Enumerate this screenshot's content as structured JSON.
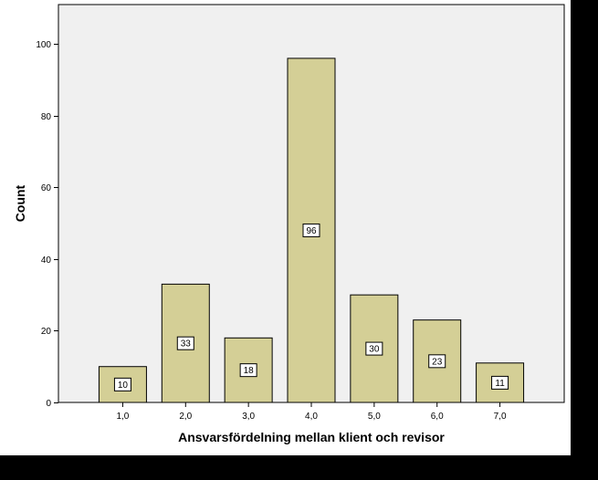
{
  "chart_data": {
    "type": "bar",
    "title": "",
    "xlabel": "Ansvarsfördelning mellan klient och revisor",
    "ylabel": "Count",
    "categories": [
      "1,0",
      "2,0",
      "3,0",
      "4,0",
      "5,0",
      "6,0",
      "7,0"
    ],
    "values": [
      10,
      33,
      18,
      96,
      30,
      23,
      11
    ],
    "data_labels": [
      "10",
      "33",
      "18",
      "96",
      "30",
      "23",
      "11"
    ],
    "ylim": [
      0,
      111
    ],
    "yticks": [
      0,
      20,
      40,
      60,
      80,
      100
    ],
    "ytick_labels": [
      "0",
      "20",
      "40",
      "60",
      "80",
      "100"
    ],
    "grid": false,
    "legend": "none",
    "colors": {
      "bar_fill": "#d4cf96",
      "bar_stroke": "#000000",
      "plot_background": "#f0f0f0",
      "figure_background": "#ffffff",
      "outer_background": "#000000"
    }
  }
}
